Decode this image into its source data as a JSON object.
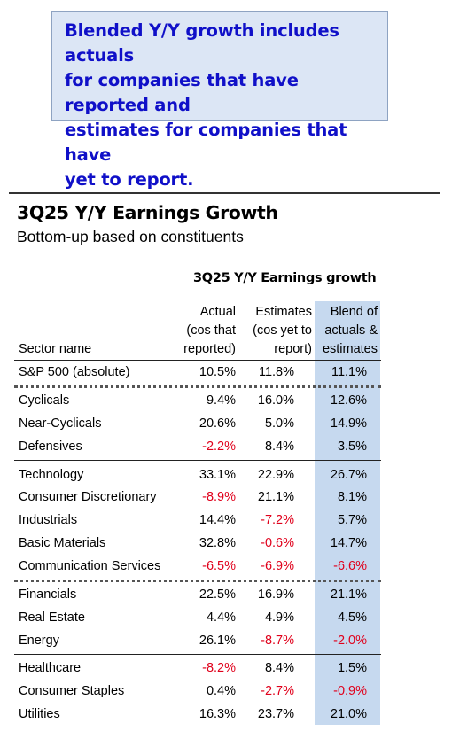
{
  "callout": {
    "lines": [
      "Blended Y/Y growth includes actuals",
      "for companies that have reported and",
      "estimates for companies that have",
      "yet to report."
    ]
  },
  "title": "3Q25 Y/Y Earnings Growth",
  "subtitle": "Bottom-up based on constituents",
  "table": {
    "group_header": "3Q25 Y/Y Earnings growth",
    "columns": {
      "sector": "Sector name",
      "actual": [
        "Actual",
        "(cos that",
        "reported)"
      ],
      "estimates": [
        "Estimates",
        "(cos yet to",
        "report)"
      ],
      "blend": [
        "Blend of",
        "actuals &",
        "estimates"
      ]
    },
    "rows": [
      {
        "name": "S&P 500 (absolute)",
        "actual": "10.5%",
        "estimates": "11.8%",
        "blend": "11.1%"
      },
      {
        "name": "Cyclicals",
        "actual": "9.4%",
        "estimates": "16.0%",
        "blend": "12.6%"
      },
      {
        "name": "Near-Cyclicals",
        "actual": "20.6%",
        "estimates": "5.0%",
        "blend": "14.9%"
      },
      {
        "name": "Defensives",
        "actual": "-2.2%",
        "estimates": "8.4%",
        "blend": "3.5%"
      },
      {
        "name": "Technology",
        "actual": "33.1%",
        "estimates": "22.9%",
        "blend": "26.7%"
      },
      {
        "name": "Consumer Discretionary",
        "actual": "-8.9%",
        "estimates": "21.1%",
        "blend": "8.1%"
      },
      {
        "name": "Industrials",
        "actual": "14.4%",
        "estimates": "-7.2%",
        "blend": "5.7%"
      },
      {
        "name": "Basic Materials",
        "actual": "32.8%",
        "estimates": "-0.6%",
        "blend": "14.7%"
      },
      {
        "name": "Communication Services",
        "actual": "-6.5%",
        "estimates": "-6.9%",
        "blend": "-6.6%"
      },
      {
        "name": "Financials",
        "actual": "22.5%",
        "estimates": "16.9%",
        "blend": "21.1%"
      },
      {
        "name": "Real Estate",
        "actual": "4.4%",
        "estimates": "4.9%",
        "blend": "4.5%"
      },
      {
        "name": "Energy",
        "actual": "26.1%",
        "estimates": "-8.7%",
        "blend": "-2.0%"
      },
      {
        "name": "Healthcare",
        "actual": "-8.2%",
        "estimates": "8.4%",
        "blend": "1.5%"
      },
      {
        "name": "Consumer Staples",
        "actual": "0.4%",
        "estimates": "-2.7%",
        "blend": "-0.9%"
      },
      {
        "name": "Utilities",
        "actual": "16.3%",
        "estimates": "23.7%",
        "blend": "21.0%"
      }
    ]
  },
  "colors": {
    "callout_text": "#1010c8",
    "callout_bg": "#dce6f5",
    "blend_column_bg": "#c6d9ef",
    "negative": "#e0001b"
  }
}
